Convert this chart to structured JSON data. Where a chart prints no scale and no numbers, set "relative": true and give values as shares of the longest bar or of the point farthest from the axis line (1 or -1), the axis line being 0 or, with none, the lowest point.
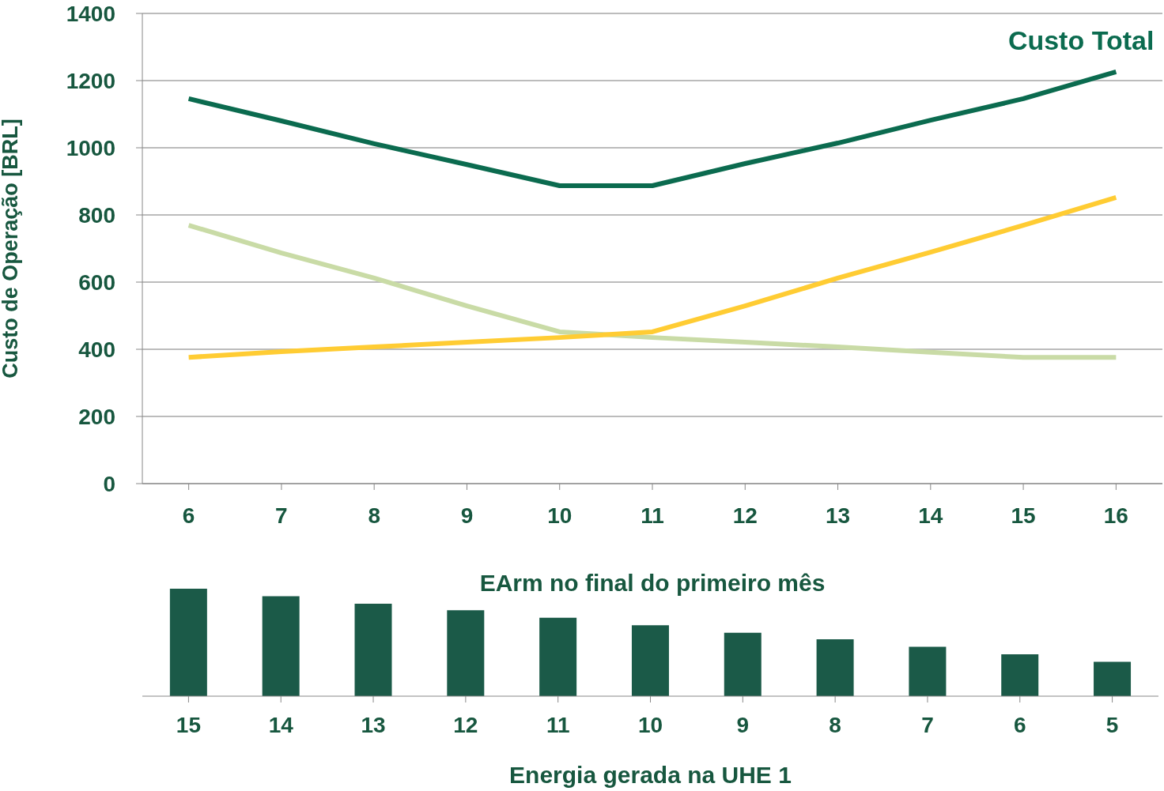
{
  "chart_data": [
    {
      "type": "line",
      "xlabel": "EArm no final do primeiro mês",
      "ylabel": "Custo de Operação [BRL]",
      "categories": [
        "6",
        "7",
        "8",
        "9",
        "10",
        "11",
        "12",
        "13",
        "14",
        "15",
        "16"
      ],
      "ylim": [
        0,
        1400
      ],
      "yticks": [
        0,
        200,
        400,
        600,
        800,
        1000,
        1200,
        1400
      ],
      "grid": "y",
      "legend": false,
      "marker": "none",
      "line_style": "solid",
      "series": [
        {
          "name": "Custo Total",
          "color": "#0b6b4f",
          "values": [
            1146,
            1080,
            1012,
            950,
            887,
            887,
            953,
            1014,
            1082,
            1146,
            1226
          ]
        },
        {
          "color": "#c9dba6",
          "values": [
            769,
            687,
            612,
            529,
            452,
            435,
            421,
            407,
            391,
            376,
            376
          ]
        },
        {
          "color": "#ffcc33",
          "values": [
            376,
            393,
            407,
            421,
            435,
            452,
            529,
            612,
            689,
            769,
            852
          ]
        }
      ]
    },
    {
      "type": "bar",
      "xlabel": "Energia gerada na UHE 1",
      "categories": [
        "15",
        "14",
        "13",
        "12",
        "11",
        "10",
        "9",
        "8",
        "7",
        "6",
        "5"
      ],
      "relative": true,
      "tick_labels": "x",
      "color": "#1b5a48",
      "values": [
        1,
        0.93,
        0.86,
        0.8,
        0.73,
        0.66,
        0.59,
        0.53,
        0.46,
        0.39,
        0.32
      ]
    }
  ]
}
